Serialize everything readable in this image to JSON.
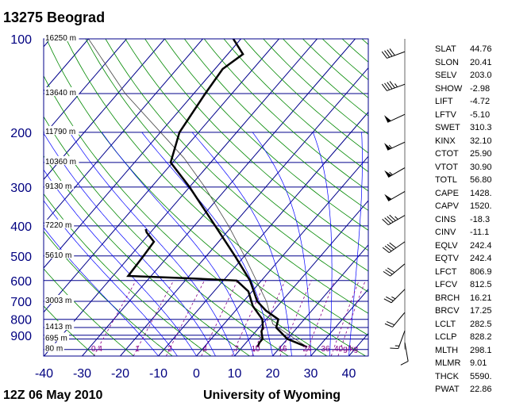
{
  "header": {
    "title": "13275  Beograd"
  },
  "footer": {
    "time": "12Z 06 May 2010",
    "source": "University of Wyoming"
  },
  "indices": [
    {
      "name": "SLAT",
      "value": "44.76"
    },
    {
      "name": "SLON",
      "value": "20.41"
    },
    {
      "name": "SELV",
      "value": "203.0"
    },
    {
      "name": "SHOW",
      "value": "-2.98"
    },
    {
      "name": "LIFT",
      "value": "-4.72"
    },
    {
      "name": "LFTV",
      "value": "-5.10"
    },
    {
      "name": "SWET",
      "value": "310.3"
    },
    {
      "name": "KINX",
      "value": "32.10"
    },
    {
      "name": "CTOT",
      "value": "25.90"
    },
    {
      "name": "VTOT",
      "value": "30.90"
    },
    {
      "name": "TOTL",
      "value": "56.80"
    },
    {
      "name": "CAPE",
      "value": "1428."
    },
    {
      "name": "CAPV",
      "value": "1520."
    },
    {
      "name": "CINS",
      "value": "-18.3"
    },
    {
      "name": "CINV",
      "value": "-11.1"
    },
    {
      "name": "EQLV",
      "value": "242.4"
    },
    {
      "name": "EQTV",
      "value": "242.4"
    },
    {
      "name": "LFCT",
      "value": "806.9"
    },
    {
      "name": "LFCV",
      "value": "812.5"
    },
    {
      "name": "BRCH",
      "value": "16.21"
    },
    {
      "name": "BRCV",
      "value": "17.25"
    },
    {
      "name": "LCLT",
      "value": "282.5"
    },
    {
      "name": "LCLP",
      "value": "828.2"
    },
    {
      "name": "MLTH",
      "value": "298.1"
    },
    {
      "name": "MLMR",
      "value": "9.01"
    },
    {
      "name": "THCK",
      "value": "5590."
    },
    {
      "name": "PWAT",
      "value": "22.86"
    }
  ],
  "colors": {
    "isobar": "#00008b",
    "isotherm": "#00008b",
    "dry_adiabat": "#008800",
    "moist_adiabat": "#0000ff",
    "mixing_ratio": "#880088",
    "profile": "#000000",
    "pressure_label": "#000080",
    "temp_label": "#000080",
    "mixing_label": "#880088"
  },
  "chart_data": {
    "type": "skew-t",
    "xlabel": "",
    "ylabel": "",
    "pressure_levels": [
      {
        "p": 100,
        "label": "100",
        "height": "16250 m"
      },
      {
        "p": 150,
        "label": "",
        "height": "13640 m"
      },
      {
        "p": 200,
        "label": "200",
        "height": "11790 m"
      },
      {
        "p": 250,
        "label": "",
        "height": "10360 m"
      },
      {
        "p": 300,
        "label": "300",
        "height": "9130 m"
      },
      {
        "p": 400,
        "label": "400",
        "height": "7220 m"
      },
      {
        "p": 500,
        "label": "500",
        "height": "5610 m"
      },
      {
        "p": 600,
        "label": "600",
        "height": ""
      },
      {
        "p": 700,
        "label": "700",
        "height": "3003 m"
      },
      {
        "p": 800,
        "label": "800",
        "height": ""
      },
      {
        "p": 850,
        "label": "",
        "height": "1413 m"
      },
      {
        "p": 900,
        "label": "900",
        "height": ""
      },
      {
        "p": 925,
        "label": "",
        "height": "695 m"
      },
      {
        "p": 1000,
        "label": "",
        "height": "80 m"
      }
    ],
    "temperature_ticks": [
      -40,
      -30,
      -20,
      -10,
      0,
      10,
      20,
      30,
      40
    ],
    "mixing_ratio_labels": [
      "0.4",
      "1",
      "2",
      "4",
      "7",
      "10",
      "16",
      "24",
      "36",
      "40g/kg"
    ],
    "temperature_profile": [
      {
        "p": 982,
        "t": 27.0
      },
      {
        "p": 925,
        "t": 20.0
      },
      {
        "p": 850,
        "t": 14.5
      },
      {
        "p": 800,
        "t": 13.2
      },
      {
        "p": 750,
        "t": 8.0
      },
      {
        "p": 700,
        "t": 3.6
      },
      {
        "p": 600,
        "t": -3.0
      },
      {
        "p": 500,
        "t": -12.5
      },
      {
        "p": 400,
        "t": -24.5
      },
      {
        "p": 300,
        "t": -40.0
      },
      {
        "p": 250,
        "t": -50.5
      },
      {
        "p": 200,
        "t": -55.0
      },
      {
        "p": 150,
        "t": -57.0
      },
      {
        "p": 125,
        "t": -58.0
      },
      {
        "p": 112,
        "t": -56.0
      },
      {
        "p": 100,
        "t": -62.0
      }
    ],
    "dewpoint_profile": [
      {
        "p": 982,
        "t": 14.0
      },
      {
        "p": 950,
        "t": 13.5
      },
      {
        "p": 925,
        "t": 13.5
      },
      {
        "p": 875,
        "t": 11.5
      },
      {
        "p": 850,
        "t": 11.0
      },
      {
        "p": 800,
        "t": 9.0
      },
      {
        "p": 725,
        "t": 3.5
      },
      {
        "p": 650,
        "t": -1.0
      },
      {
        "p": 600,
        "t": -6.5
      },
      {
        "p": 590,
        "t": -20.0
      },
      {
        "p": 580,
        "t": -36.0
      },
      {
        "p": 500,
        "t": -36.5
      },
      {
        "p": 450,
        "t": -37.0
      },
      {
        "p": 420,
        "t": -41.0
      },
      {
        "p": 410,
        "t": -42.0
      }
    ],
    "parcel_path": [
      {
        "p": 982,
        "t": 27.0
      },
      {
        "p": 828,
        "t": 12.8
      },
      {
        "p": 700,
        "t": 6.0
      },
      {
        "p": 500,
        "t": -10.0
      },
      {
        "p": 400,
        "t": -21.0
      },
      {
        "p": 300,
        "t": -36.0
      },
      {
        "p": 242,
        "t": -48.0
      },
      {
        "p": 150,
        "t": -78.0
      },
      {
        "p": 100,
        "t": -100.0
      }
    ],
    "wind_barbs": [
      {
        "p": 110,
        "dir": 250,
        "spd": 40
      },
      {
        "p": 140,
        "dir": 250,
        "spd": 45
      },
      {
        "p": 175,
        "dir": 245,
        "spd": 50
      },
      {
        "p": 215,
        "dir": 245,
        "spd": 55
      },
      {
        "p": 260,
        "dir": 240,
        "spd": 55
      },
      {
        "p": 310,
        "dir": 240,
        "spd": 50
      },
      {
        "p": 370,
        "dir": 240,
        "spd": 45
      },
      {
        "p": 450,
        "dir": 235,
        "spd": 40
      },
      {
        "p": 530,
        "dir": 230,
        "spd": 30
      },
      {
        "p": 640,
        "dir": 225,
        "spd": 25
      },
      {
        "p": 760,
        "dir": 220,
        "spd": 20
      },
      {
        "p": 870,
        "dir": 200,
        "spd": 15
      },
      {
        "p": 950,
        "dir": 170,
        "spd": 10
      }
    ]
  }
}
